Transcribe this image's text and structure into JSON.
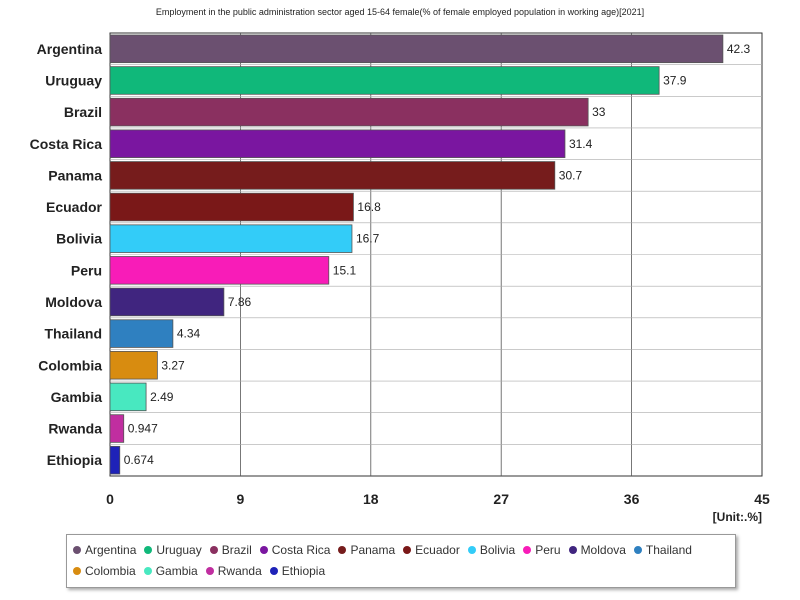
{
  "chart_data": {
    "type": "bar",
    "orientation": "horizontal",
    "title": "Employment in the public administration sector aged 15-64 female(% of female employed population in working age)[2021]",
    "unit_label": "[Unit:.%]",
    "xlim": [
      0,
      45
    ],
    "ticks": [
      "0",
      "9",
      "18",
      "27",
      "36",
      "45"
    ],
    "tick_values": [
      0,
      9,
      18,
      27,
      36,
      45
    ],
    "grid": true,
    "legend_position": "bottom",
    "categories": [
      "Argentina",
      "Uruguay",
      "Brazil",
      "Costa Rica",
      "Panama",
      "Ecuador",
      "Bolivia",
      "Peru",
      "Moldova",
      "Thailand",
      "Colombia",
      "Gambia",
      "Rwanda",
      "Ethiopia"
    ],
    "values": [
      42.3,
      37.9,
      33,
      31.4,
      30.7,
      16.8,
      16.7,
      15.1,
      7.86,
      4.34,
      3.27,
      2.49,
      0.947,
      0.674
    ],
    "value_labels": [
      "42.3",
      "37.9",
      "33",
      "31.4",
      "30.7",
      "16.8",
      "16.7",
      "15.1",
      "7.86",
      "4.34",
      "3.27",
      "2.49",
      "0.947",
      "0.674"
    ],
    "colors": [
      "#6b5070",
      "#10b87a",
      "#8a3060",
      "#7a16a0",
      "#761c1c",
      "#7a1818",
      "#33ccf8",
      "#f81cb8",
      "#40257f",
      "#2f80c0",
      "#d88c10",
      "#48e8c0",
      "#c02ea0",
      "#1e22b8"
    ]
  }
}
